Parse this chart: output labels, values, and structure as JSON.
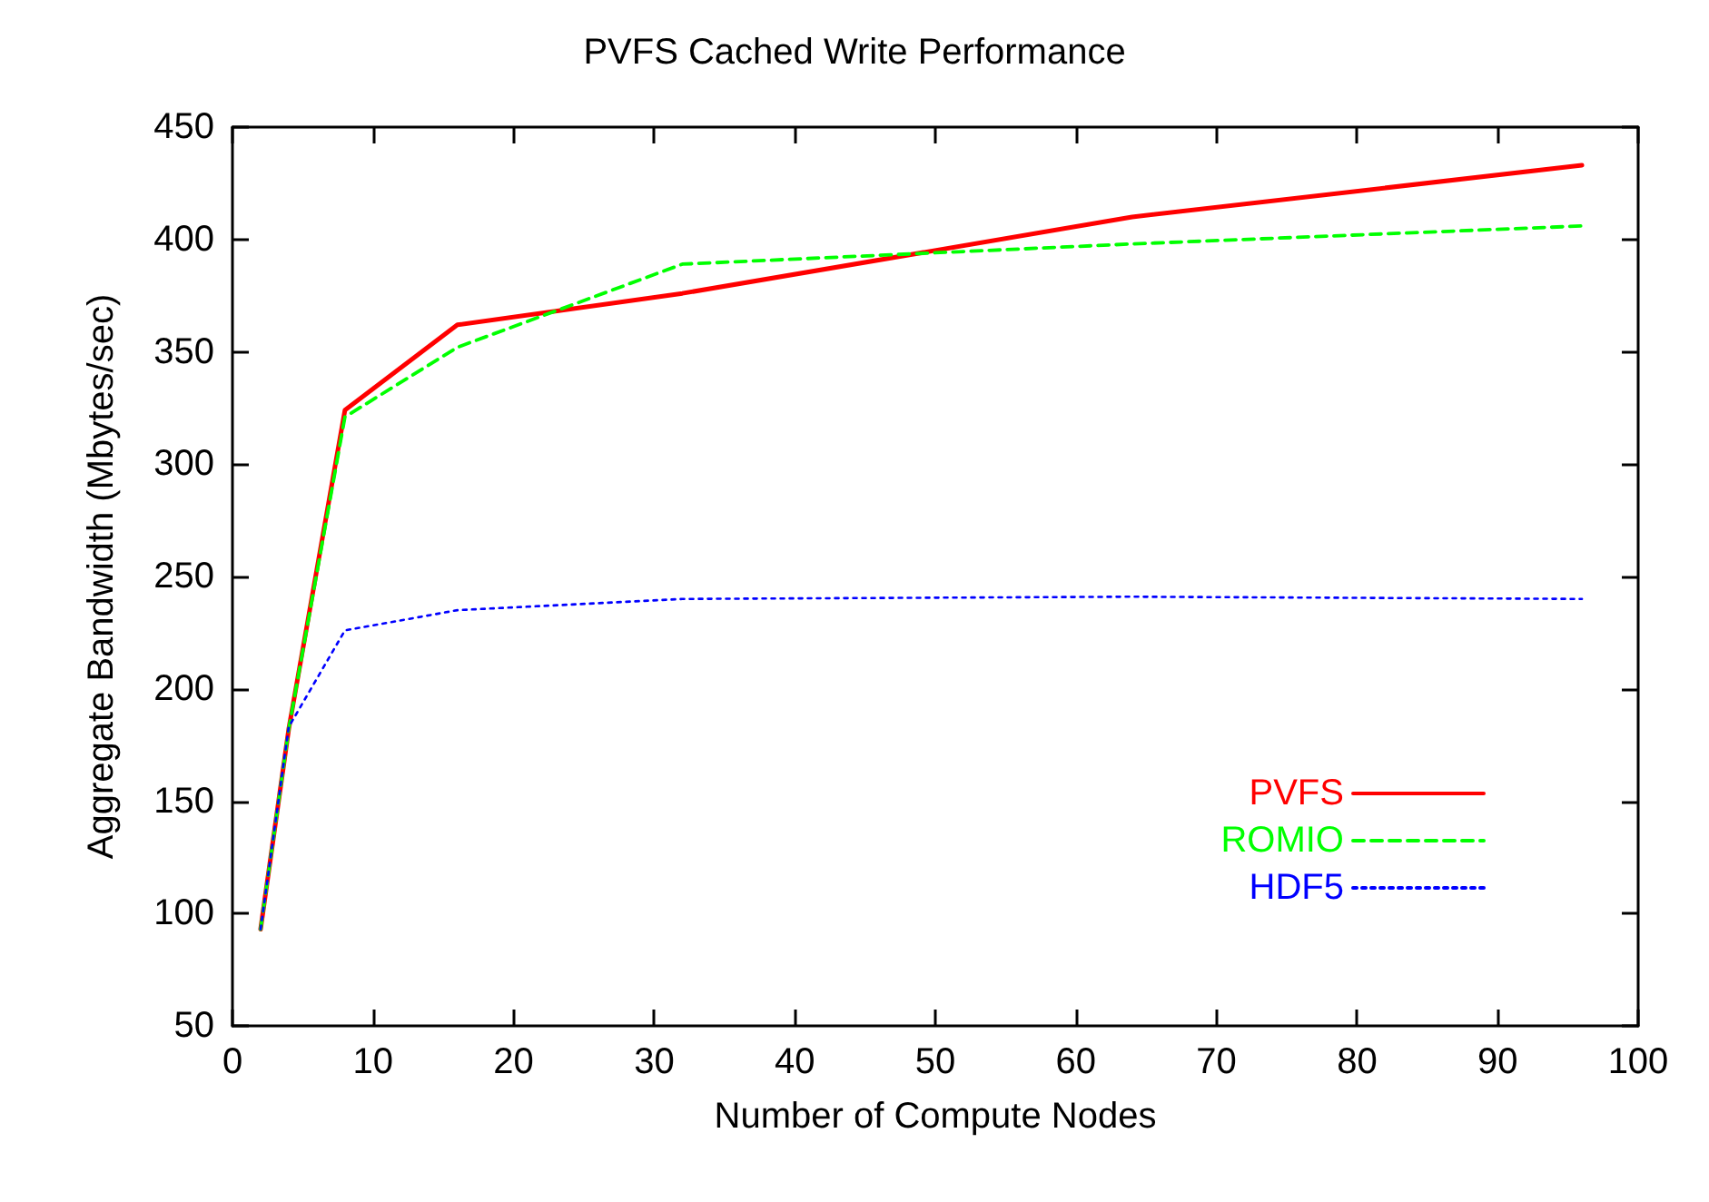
{
  "chart_data": {
    "type": "line",
    "title": "PVFS Cached Write Performance",
    "xlabel": "Number of Compute Nodes",
    "ylabel": "Aggregate Bandwidth (Mbytes/sec)",
    "x": [
      2,
      4,
      8,
      16,
      32,
      64,
      96
    ],
    "series": [
      {
        "name": "PVFS",
        "color": "#ff0000",
        "line_style": "solid",
        "values": [
          93,
          182,
          324,
          362,
          376,
          410,
          433
        ]
      },
      {
        "name": "ROMIO",
        "color": "#00ff00",
        "line_style": "dashed",
        "values": [
          93,
          182,
          321,
          352,
          389,
          398,
          406
        ]
      },
      {
        "name": "HDF5",
        "color": "#0000ff",
        "line_style": "dotted",
        "values": [
          93,
          183,
          226,
          235,
          240,
          241,
          240
        ]
      }
    ],
    "xlim": [
      0,
      100
    ],
    "xticks": [
      0,
      10,
      20,
      30,
      40,
      50,
      60,
      70,
      80,
      90,
      100
    ],
    "ylim": [
      50,
      450
    ],
    "yticks": [
      50,
      100,
      150,
      200,
      250,
      300,
      350,
      400,
      450
    ],
    "grid": false,
    "legend": "bottom right",
    "marker": "none"
  }
}
